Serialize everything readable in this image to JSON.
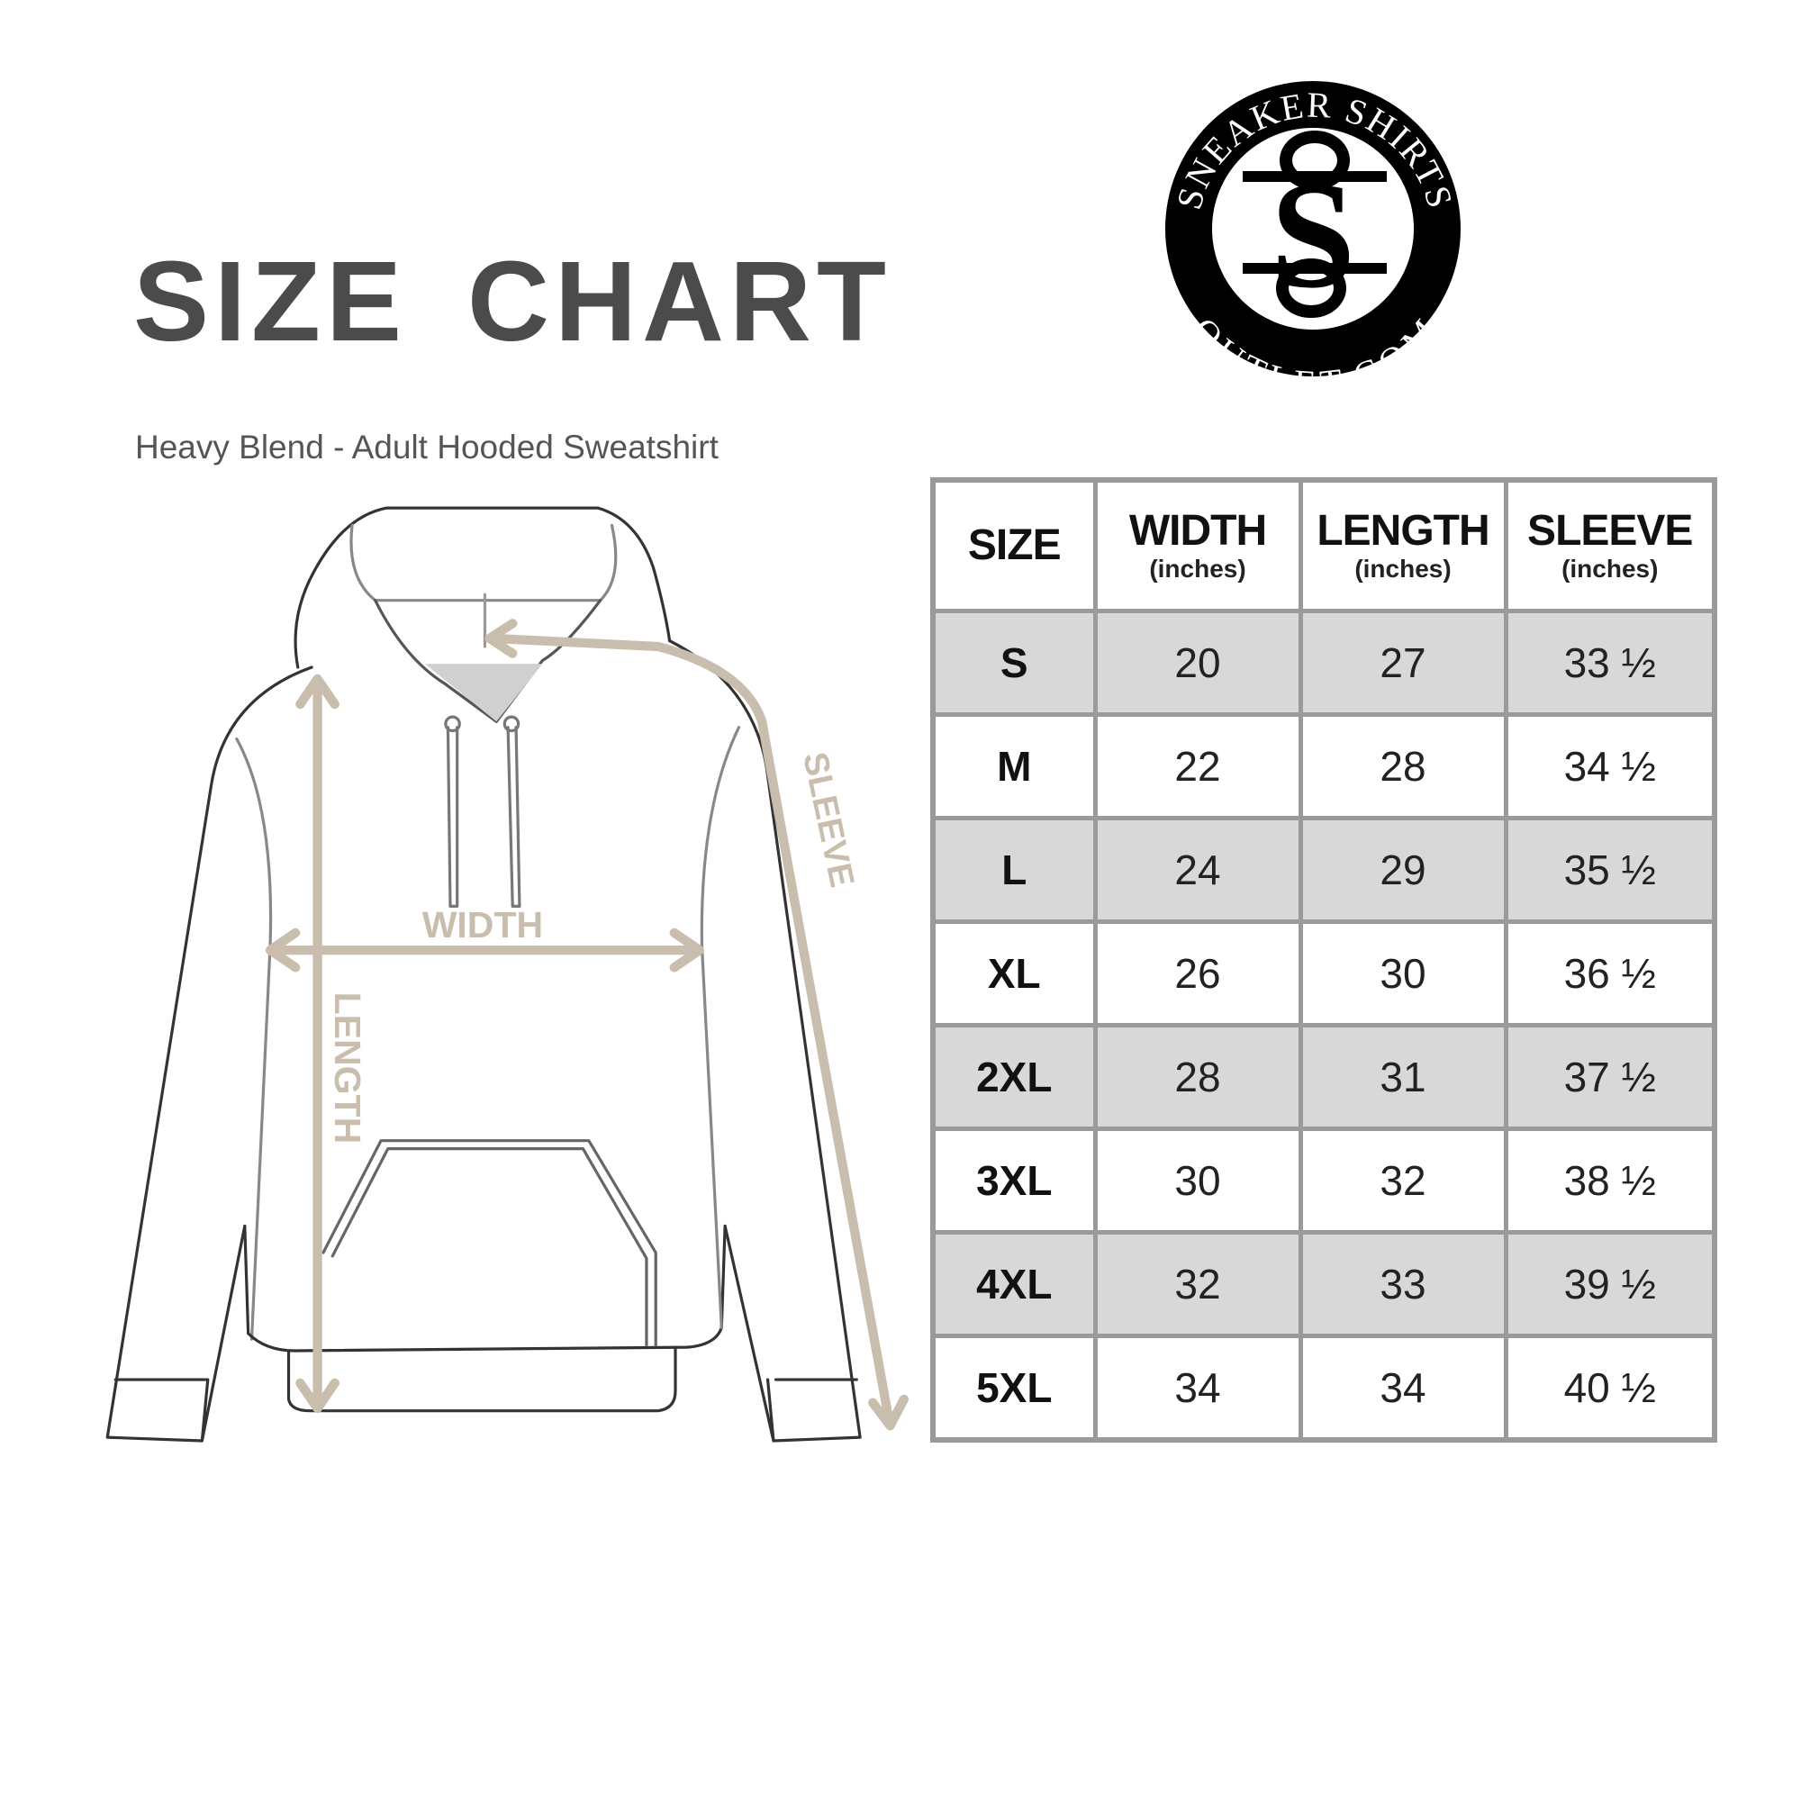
{
  "title": "SIZE CHART",
  "subtitle": "Heavy Blend - Adult Hooded Sweatshirt",
  "logo": {
    "top_text": "SNEAKER SHIRTS",
    "bottom_text": "OUTLET.COM",
    "monogram": "SS"
  },
  "diagram_labels": {
    "width": "WIDTH",
    "length": "LENGTH",
    "sleeve": "SLEEVE"
  },
  "colors": {
    "arrow": "#c9bead",
    "title": "#4b4b4b",
    "row_shade": "#d8d8d8",
    "border": "#9a9a9a"
  },
  "table": {
    "headers": [
      {
        "label": "SIZE",
        "unit": ""
      },
      {
        "label": "WIDTH",
        "unit": "(inches)"
      },
      {
        "label": "LENGTH",
        "unit": "(inches)"
      },
      {
        "label": "SLEEVE",
        "unit": "(inches)"
      }
    ],
    "rows": [
      {
        "size": "S",
        "width": "20",
        "length": "27",
        "sleeve": "33 ½"
      },
      {
        "size": "M",
        "width": "22",
        "length": "28",
        "sleeve": "34 ½"
      },
      {
        "size": "L",
        "width": "24",
        "length": "29",
        "sleeve": "35 ½"
      },
      {
        "size": "XL",
        "width": "26",
        "length": "30",
        "sleeve": "36 ½"
      },
      {
        "size": "2XL",
        "width": "28",
        "length": "31",
        "sleeve": "37 ½"
      },
      {
        "size": "3XL",
        "width": "30",
        "length": "32",
        "sleeve": "38 ½"
      },
      {
        "size": "4XL",
        "width": "32",
        "length": "33",
        "sleeve": "39 ½"
      },
      {
        "size": "5XL",
        "width": "34",
        "length": "34",
        "sleeve": "40 ½"
      }
    ]
  }
}
